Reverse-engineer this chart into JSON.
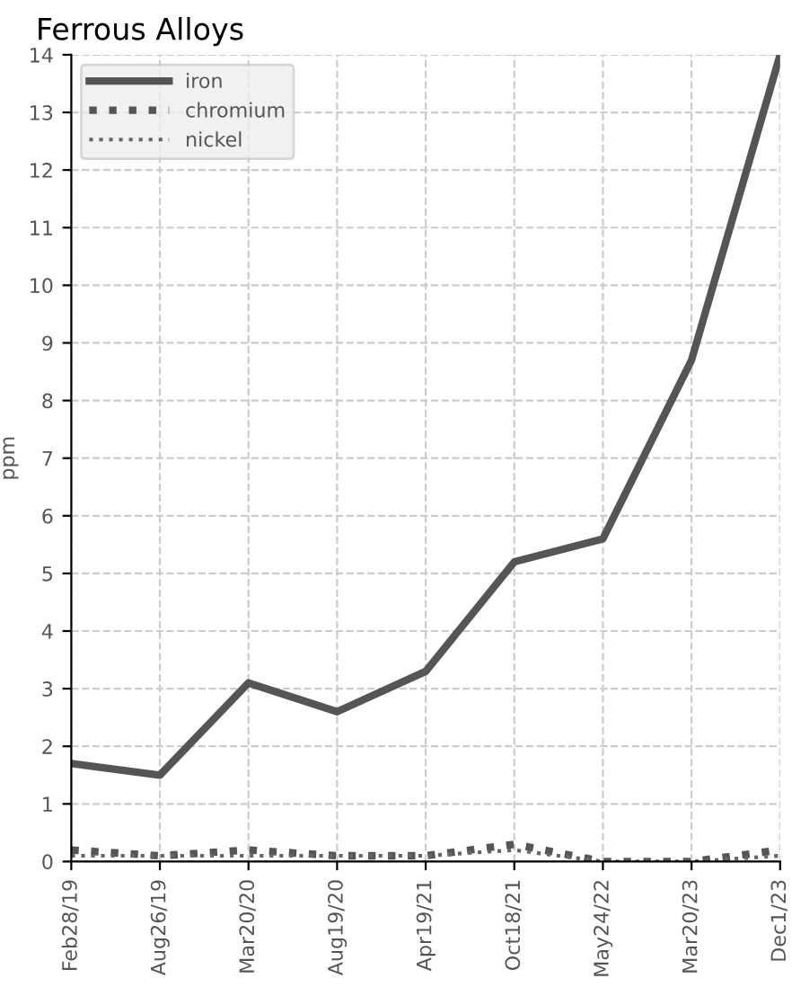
{
  "chart_data": {
    "type": "line",
    "title": "Ferrous Alloys",
    "ylabel": "ppm",
    "categories": [
      "Feb28/19",
      "Aug26/19",
      "Mar20/20",
      "Aug19/20",
      "Apr19/21",
      "Oct18/21",
      "May24/22",
      "Mar20/23",
      "Dec1/23"
    ],
    "series": [
      {
        "name": "iron",
        "color": "#555555",
        "line_style": "solid",
        "values": [
          1.7,
          1.5,
          3.1,
          2.6,
          3.3,
          5.2,
          5.6,
          8.7,
          14
        ]
      },
      {
        "name": "chromium",
        "color": "#555555",
        "line_style": "dotted",
        "values": [
          0.2,
          0.1,
          0.2,
          0.1,
          0.1,
          0.3,
          0,
          0,
          0.2
        ]
      },
      {
        "name": "nickel",
        "color": "#666666",
        "line_style": "dotted",
        "values": [
          0.1,
          0.1,
          0.1,
          0.1,
          0.1,
          0.2,
          0,
          0,
          0.1
        ]
      }
    ],
    "ylim": [
      0,
      14
    ],
    "yticks": [
      0,
      1,
      2,
      3,
      4,
      5,
      6,
      7,
      8,
      9,
      10,
      11,
      12,
      13,
      14
    ],
    "grid": true,
    "legend": "top left",
    "marker": "none"
  }
}
